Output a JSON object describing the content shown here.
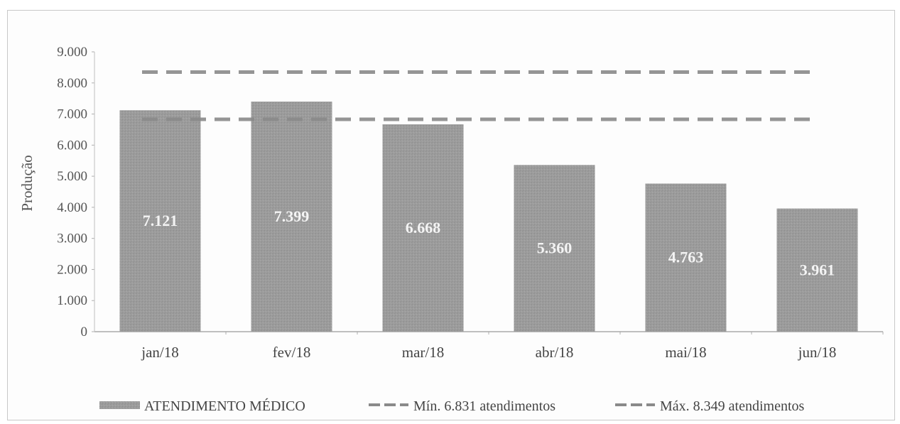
{
  "chart_data": {
    "type": "bar",
    "title": "",
    "xlabel": "",
    "ylabel": "Produção",
    "ylim": [
      0,
      9000
    ],
    "yticks": [
      "0",
      "1.000",
      "2.000",
      "3.000",
      "4.000",
      "5.000",
      "6.000",
      "7.000",
      "8.000",
      "9.000"
    ],
    "categories": [
      "jan/18",
      "fev/18",
      "mar/18",
      "abr/18",
      "mai/18",
      "jun/18"
    ],
    "series": [
      {
        "name": "ATENDIMENTO MÉDICO",
        "values": [
          7121,
          7399,
          6668,
          5360,
          4763,
          3961
        ],
        "labels": [
          "7.121",
          "7.399",
          "6.668",
          "5.360",
          "4.763",
          "3.961"
        ]
      }
    ],
    "reference_lines": [
      {
        "name": "Mín. 6.831 atendimentos",
        "value": 6831
      },
      {
        "name": "Máx. 8.349 atendimentos",
        "value": 8349
      }
    ],
    "legend_position": "bottom",
    "grid": false,
    "colors": {
      "bar": "#9a9a9a",
      "line": "#8a8a8a",
      "text": "#555555"
    }
  }
}
